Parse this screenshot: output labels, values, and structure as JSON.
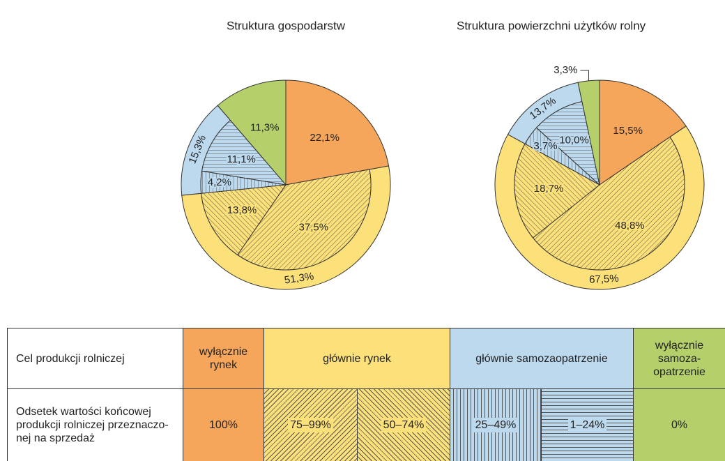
{
  "chart_data": [
    {
      "type": "pie",
      "title": "Struktura gospodarstw",
      "values": [
        22.1,
        37.5,
        13.8,
        4.2,
        11.1,
        11.3
      ],
      "value_labels": [
        "22,1%",
        "37,5%",
        "13,8%",
        "4,2%",
        "11,1%",
        "11,3%"
      ],
      "colors": [
        "#f5a65b",
        "#fce07a",
        "#fce07a",
        "#bcd9ee",
        "#bcd9ee",
        "#b5cf6b"
      ],
      "hatch": [
        "none",
        "/",
        "\\",
        "|",
        "-",
        "none"
      ],
      "ring": {
        "values": [
          51.3,
          15.3
        ],
        "value_labels": [
          "51,3%",
          "15,3%"
        ],
        "colors": [
          "#fce07a",
          "#bcd9ee"
        ],
        "groups": [
          [
            1,
            2
          ],
          [
            3,
            4
          ]
        ]
      }
    },
    {
      "type": "pie",
      "title": "Struktura powierzchni użytków rolny",
      "values": [
        15.5,
        48.8,
        18.7,
        3.7,
        10.0,
        3.3
      ],
      "value_labels": [
        "15,5%",
        "48,8%",
        "18,7%",
        "3,7%",
        "10,0%",
        "3,3%"
      ],
      "colors": [
        "#f5a65b",
        "#fce07a",
        "#fce07a",
        "#bcd9ee",
        "#bcd9ee",
        "#b5cf6b"
      ],
      "hatch": [
        "none",
        "/",
        "\\",
        "|",
        "-",
        "none"
      ],
      "ring": {
        "values": [
          67.5,
          13.7
        ],
        "value_labels": [
          "67,5%",
          "13,7%"
        ],
        "colors": [
          "#fce07a",
          "#bcd9ee"
        ],
        "groups": [
          [
            1,
            2
          ],
          [
            3,
            4
          ]
        ]
      }
    }
  ],
  "table": {
    "header": [
      "Cel produkcji rolniczej",
      "wyłącznie rynek",
      "głównie rynek",
      "głównie samozaopatrzenie",
      "wyłącznie samoza-opatrzenie"
    ],
    "row": [
      "Odsetek wartości końcowej produkcji rolniczej przeznaczo-nej na sprzedaż",
      "100%",
      "75–99%",
      "50–74%",
      "25–49%",
      "1–24%",
      "0%"
    ]
  }
}
